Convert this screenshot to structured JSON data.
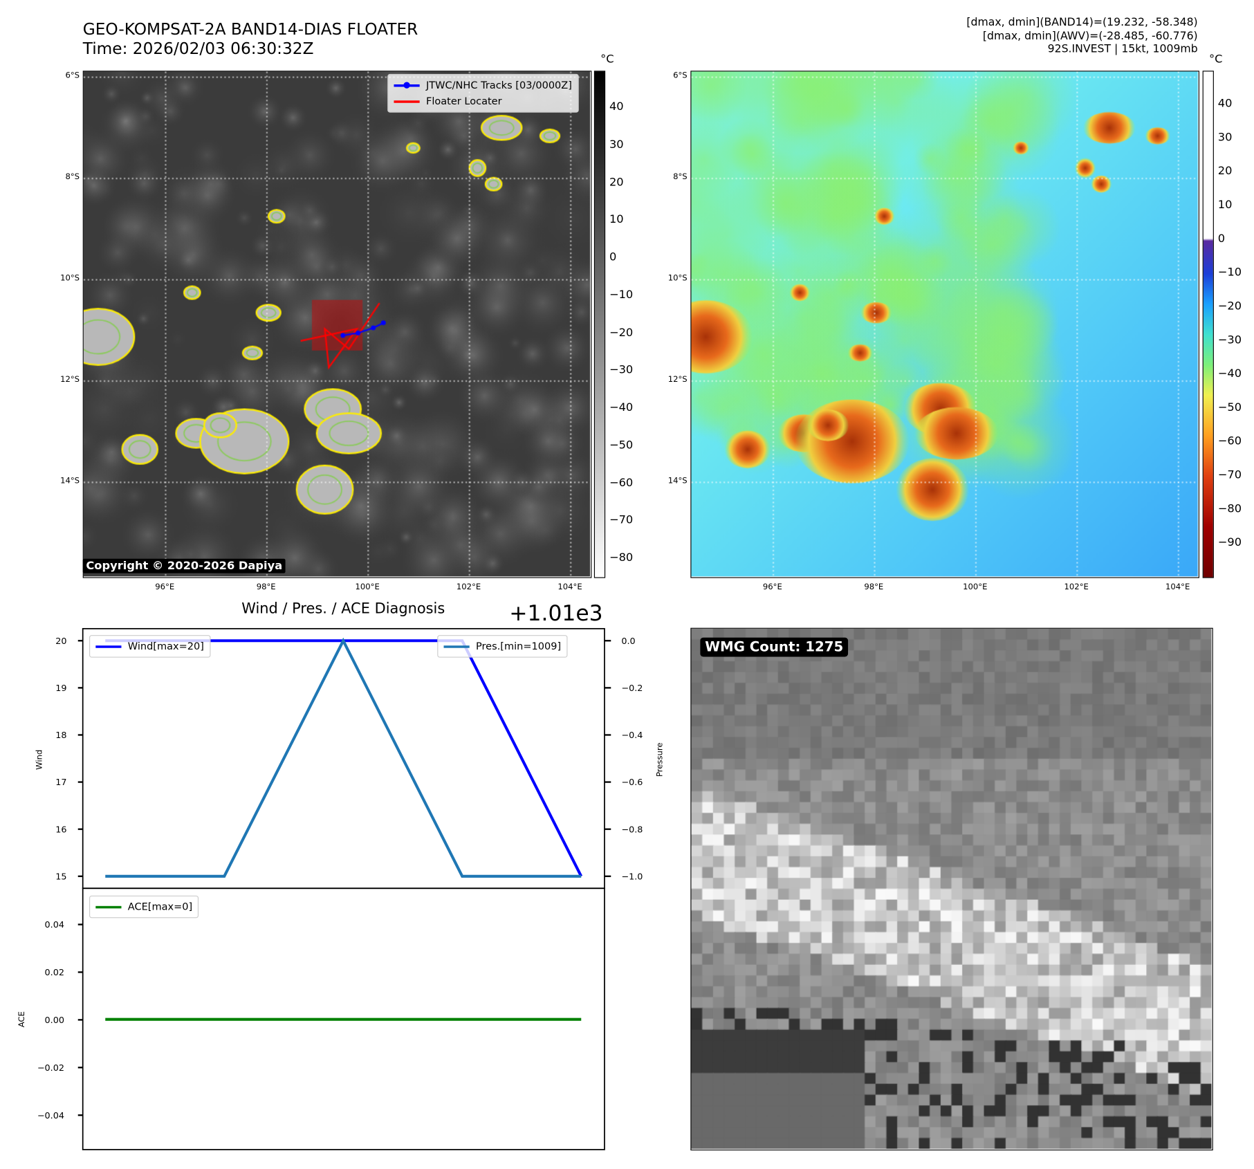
{
  "header": {
    "title_line1": "GEO-KOMPSAT-2A BAND14-DIAS FLOATER",
    "title_line2": "Time: 2026/02/03 06:30:32Z",
    "info_line1": "[dmax, dmin](BAND14)=(19.232, -58.348)",
    "info_line2": "[dmax, dmin](AWV)=(-28.485, -60.776)",
    "info_line3": "92S.INVEST | 15kt, 1009mb"
  },
  "maps": {
    "lat_labels": [
      "6°S",
      "8°S",
      "10°S",
      "12°S",
      "14°S"
    ],
    "lon_labels": [
      "96°E",
      "98°E",
      "100°E",
      "102°E",
      "104°E"
    ],
    "copyright": "Copyright © 2020-2026 Dapiya",
    "legend": {
      "tracks": "JTWC/NHC Tracks [03/0000Z]",
      "floater": "Floater Locater"
    },
    "left_colorbar": {
      "unit": "°C",
      "ticks": [
        "40",
        "30",
        "20",
        "10",
        "0",
        "−10",
        "−20",
        "−30",
        "−40",
        "−50",
        "−60",
        "−70",
        "−80"
      ]
    },
    "right_colorbar": {
      "unit": "°C",
      "ticks": [
        "40",
        "30",
        "20",
        "10",
        "0",
        "−10",
        "−20",
        "−30",
        "−40",
        "−50",
        "−60",
        "−70",
        "−80",
        "−90"
      ]
    },
    "track_points": [
      [
        99.5,
        -11.1
      ],
      [
        99.8,
        -11.05
      ],
      [
        100.1,
        -10.95
      ],
      [
        100.3,
        -10.85
      ]
    ],
    "colors": {
      "track": "#0000ff",
      "floater": "#ff0000",
      "contour_cold": "#ffee00",
      "contour_colder": "#88cc55"
    }
  },
  "wmg": {
    "label": "WMG Count: 1275"
  },
  "chart_data": [
    {
      "type": "line",
      "title": "Wind / Pres. / ACE Diagnosis",
      "offset_label": "+1.01e3",
      "x": [
        0,
        1,
        2,
        3,
        4
      ],
      "series": [
        {
          "name": "Wind[max=20]",
          "axis": "left",
          "color": "#0000ff",
          "values": [
            20,
            20,
            20,
            20,
            15
          ]
        },
        {
          "name": "Pres.[min=1009]",
          "axis": "right",
          "color": "#1f77b4",
          "values": [
            1009,
            1009,
            1010,
            1009,
            1009
          ]
        }
      ],
      "ylabel": "Wind",
      "ylabel_right": "Pressure",
      "ylim": [
        15,
        20
      ],
      "ylim_right_offset": [
        -1.0,
        0.0
      ],
      "yticks": [
        "20",
        "19",
        "18",
        "17",
        "16",
        "15"
      ],
      "yticks_right": [
        "0.0",
        "−0.2",
        "−0.4",
        "−0.6",
        "−0.8",
        "−1.0"
      ]
    },
    {
      "type": "line",
      "x": [
        0,
        1,
        2,
        3,
        4
      ],
      "series": [
        {
          "name": "ACE[max=0]",
          "color": "#008000",
          "values": [
            0,
            0,
            0,
            0,
            0
          ]
        }
      ],
      "ylabel": "ACE",
      "ylim": [
        -0.05,
        0.05
      ],
      "yticks": [
        "0.04",
        "0.02",
        "0.00",
        "−0.02",
        "−0.04"
      ]
    }
  ]
}
